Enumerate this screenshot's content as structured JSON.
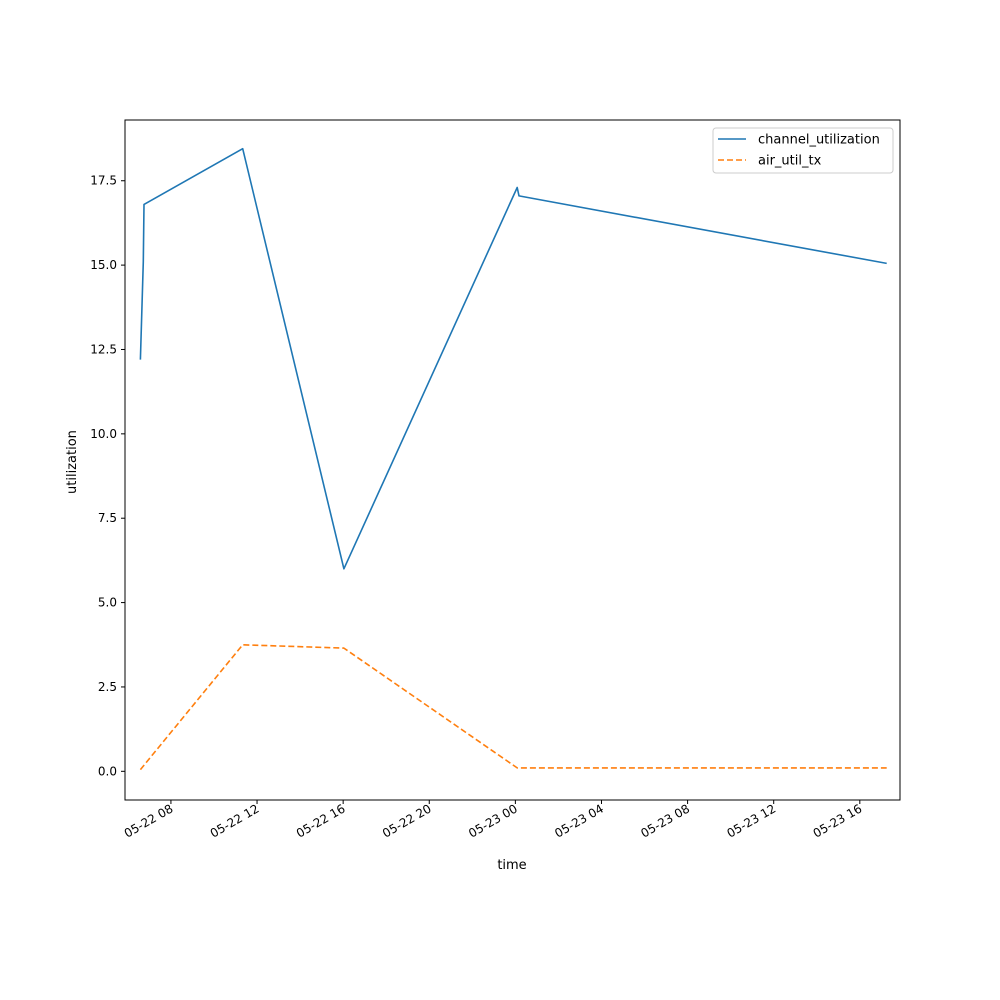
{
  "chart_data": {
    "type": "line",
    "xlabel": "time",
    "ylabel": "utilization",
    "x_axis_kind": "datetime",
    "xlim": [
      "2022-05-22 05:52",
      "2022-05-23 17:52"
    ],
    "ylim": [
      -0.85,
      19.3
    ],
    "x_ticks": [
      {
        "t": "2022-05-22 08:00",
        "label": "05-22 08"
      },
      {
        "t": "2022-05-22 12:00",
        "label": "05-22 12"
      },
      {
        "t": "2022-05-22 16:00",
        "label": "05-22 16"
      },
      {
        "t": "2022-05-22 20:00",
        "label": "05-22 20"
      },
      {
        "t": "2022-05-23 00:00",
        "label": "05-23 00"
      },
      {
        "t": "2022-05-23 04:00",
        "label": "05-23 04"
      },
      {
        "t": "2022-05-23 08:00",
        "label": "05-23 08"
      },
      {
        "t": "2022-05-23 12:00",
        "label": "05-23 12"
      },
      {
        "t": "2022-05-23 16:00",
        "label": "05-23 16"
      }
    ],
    "y_ticks": [
      {
        "v": 0.0,
        "label": "0.0"
      },
      {
        "v": 2.5,
        "label": "2.5"
      },
      {
        "v": 5.0,
        "label": "5.0"
      },
      {
        "v": 7.5,
        "label": "7.5"
      },
      {
        "v": 10.0,
        "label": "10.0"
      },
      {
        "v": 12.5,
        "label": "12.5"
      },
      {
        "v": 15.0,
        "label": "15.0"
      },
      {
        "v": 17.5,
        "label": "17.5"
      }
    ],
    "grid": false,
    "legend_position": "top-right",
    "series": [
      {
        "name": "channel_utilization",
        "color": "#1f77b4",
        "style": "solid",
        "points": [
          {
            "t": "2022-05-22 06:35",
            "y": 12.2
          },
          {
            "t": "2022-05-22 06:43",
            "y": 15.1
          },
          {
            "t": "2022-05-22 06:45",
            "y": 16.8
          },
          {
            "t": "2022-05-22 11:20",
            "y": 18.45
          },
          {
            "t": "2022-05-22 16:02",
            "y": 6.0
          },
          {
            "t": "2022-05-23 00:05",
            "y": 17.3
          },
          {
            "t": "2022-05-23 00:10",
            "y": 17.05
          },
          {
            "t": "2022-05-23 17:15",
            "y": 15.05
          }
        ]
      },
      {
        "name": "air_util_tx",
        "color": "#ff7f0e",
        "style": "dashed",
        "points": [
          {
            "t": "2022-05-22 06:35",
            "y": 0.05
          },
          {
            "t": "2022-05-22 11:20",
            "y": 3.75
          },
          {
            "t": "2022-05-22 16:02",
            "y": 3.65
          },
          {
            "t": "2022-05-23 00:05",
            "y": 0.1
          },
          {
            "t": "2022-05-23 17:15",
            "y": 0.1
          }
        ]
      }
    ]
  }
}
